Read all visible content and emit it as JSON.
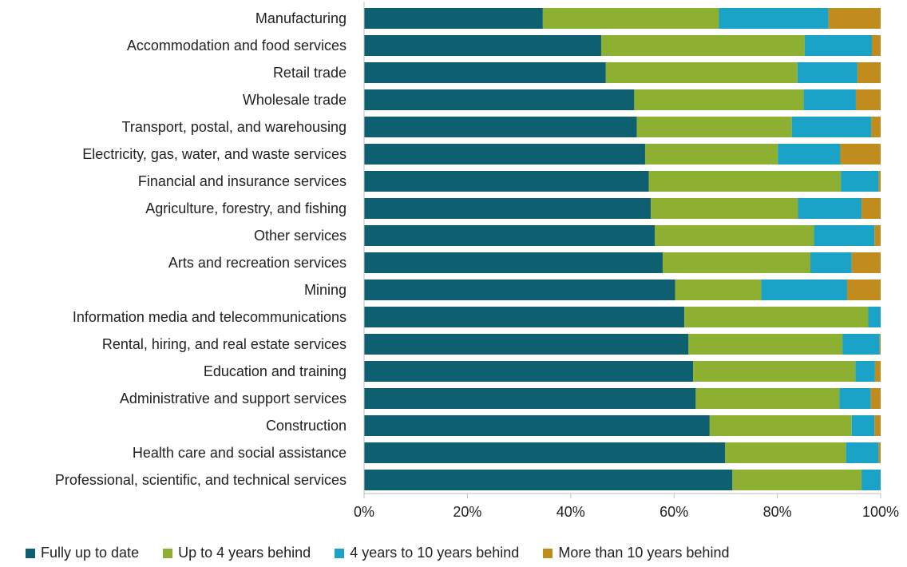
{
  "chart_data": {
    "type": "bar",
    "orientation": "horizontal",
    "stacked": true,
    "normalized": true,
    "title": "",
    "xlabel": "",
    "ylabel": "",
    "xlim": [
      0,
      100
    ],
    "x_ticks": [
      "0%",
      "20%",
      "40%",
      "60%",
      "80%",
      "100%"
    ],
    "grid": false,
    "legend_position": "bottom",
    "categories": [
      "Manufacturing",
      "Accommodation and food services",
      "Retail trade",
      "Wholesale trade",
      "Transport, postal, and warehousing",
      "Electricity, gas, water, and waste services",
      "Financial and insurance services",
      "Agriculture, forestry, and fishing",
      "Other services",
      "Arts and recreation services",
      "Mining",
      "Information media and telecommunications",
      "Rental, hiring, and real estate services",
      "Education and training",
      "Administrative and support services",
      "Construction",
      "Health care and social assistance",
      "Professional, scientific, and technical services"
    ],
    "series": [
      {
        "name": "Fully up to date",
        "color": "#0E5F70",
        "values": [
          34.6,
          45.9,
          46.8,
          52.3,
          52.8,
          54.4,
          55.1,
          55.5,
          56.3,
          57.8,
          60.2,
          62.0,
          62.8,
          63.7,
          64.2,
          66.9,
          69.9,
          71.3
        ]
      },
      {
        "name": "Up to 4 years behind",
        "color": "#8DB032",
        "values": [
          34.1,
          39.4,
          37.1,
          32.8,
          30.0,
          25.7,
          37.2,
          28.5,
          30.8,
          28.6,
          16.7,
          35.6,
          29.8,
          31.4,
          27.8,
          27.5,
          23.4,
          25.0
        ]
      },
      {
        "name": "4 years to 10 years behind",
        "color": "#1AA2C7",
        "values": [
          21.2,
          13.0,
          11.6,
          10.1,
          15.4,
          12.1,
          7.3,
          12.3,
          11.7,
          8.0,
          16.6,
          2.4,
          7.2,
          3.8,
          6.1,
          4.4,
          6.3,
          3.7
        ]
      },
      {
        "name": "More than 10 years behind",
        "color": "#BF8C1D",
        "values": [
          10.1,
          1.7,
          4.5,
          4.8,
          1.8,
          7.8,
          0.4,
          3.7,
          1.2,
          5.6,
          6.5,
          0.0,
          0.2,
          1.1,
          1.9,
          1.2,
          0.4,
          0.0
        ]
      }
    ]
  }
}
